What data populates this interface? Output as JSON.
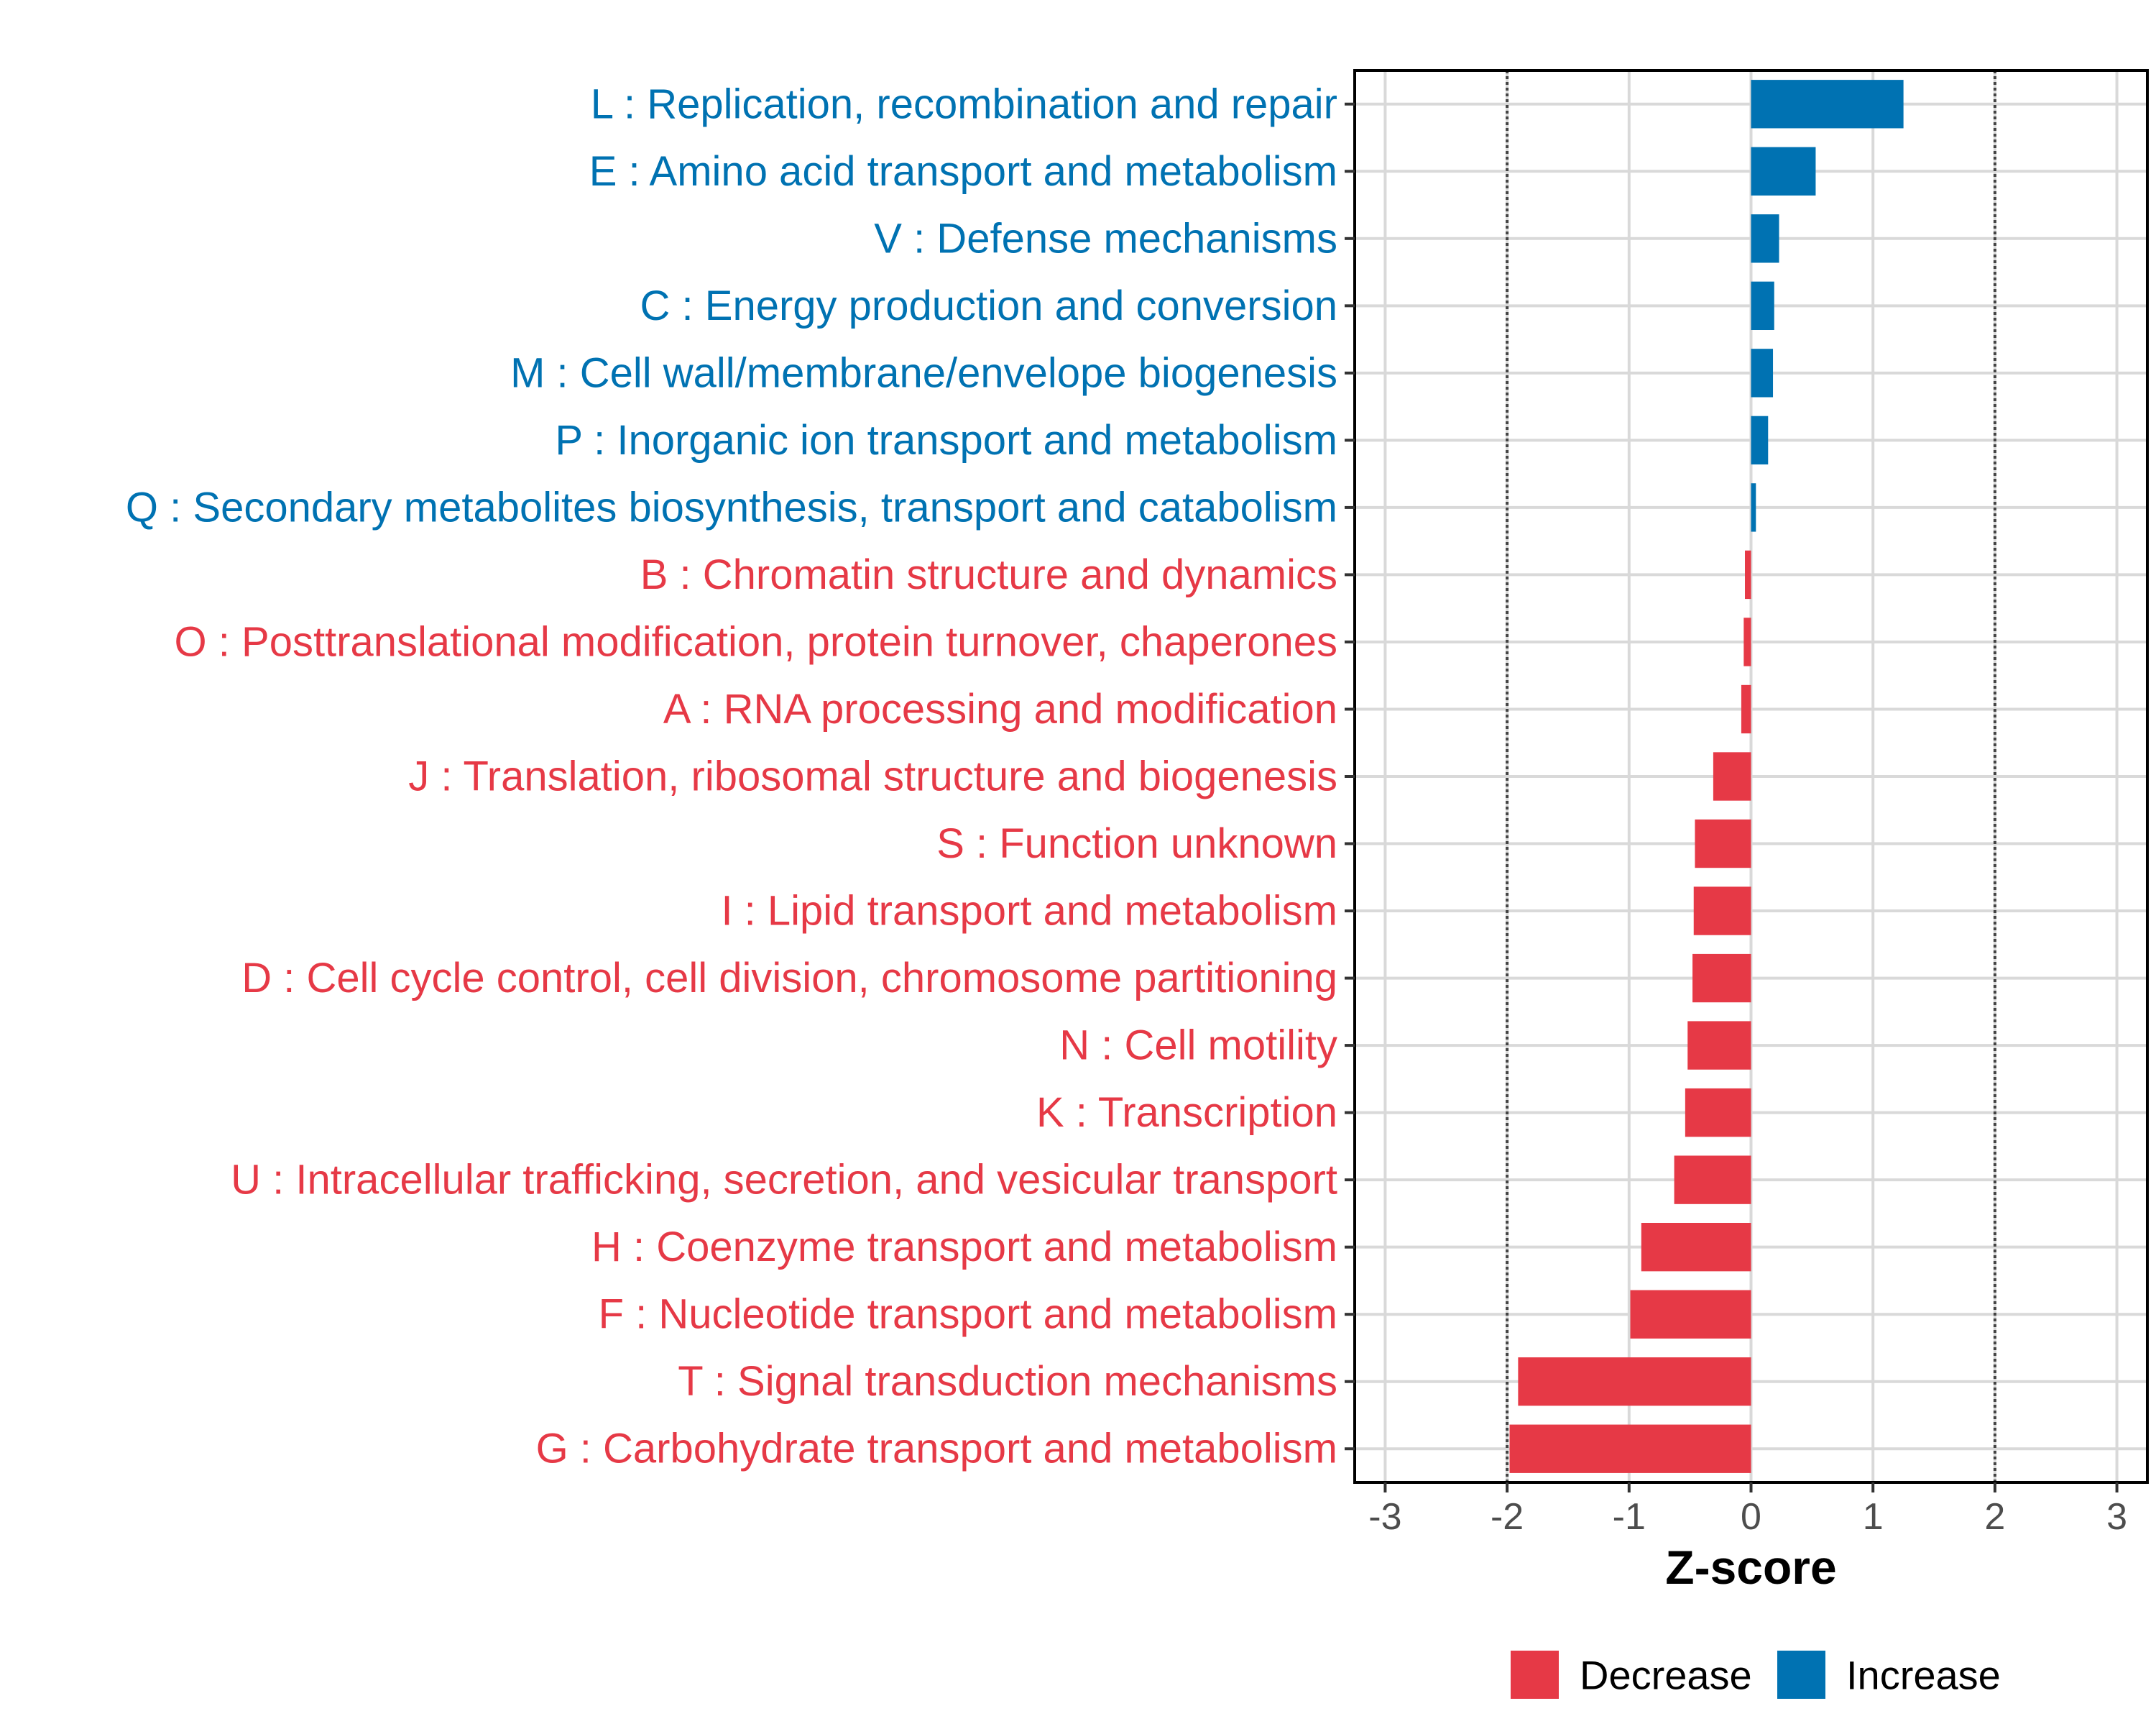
{
  "chart_data": {
    "type": "bar",
    "orientation": "horizontal",
    "title": "",
    "xlabel": "Z-score",
    "ylabel": "",
    "xlim": [
      -3.25,
      3.25
    ],
    "x_ticks": [
      -3,
      -2,
      -1,
      0,
      1,
      2,
      3
    ],
    "x_tick_labels": [
      "-3",
      "-2",
      "-1",
      "0",
      "1",
      "2",
      "3"
    ],
    "reference_lines": [
      -2,
      2
    ],
    "grid": true,
    "legend": {
      "position": "bottom",
      "entries": [
        {
          "label": "Decrease",
          "color": "#E63946"
        },
        {
          "label": "Increase",
          "color": "#0072B2"
        }
      ]
    },
    "categories": [
      "L : Replication, recombination and repair",
      "E : Amino acid transport and metabolism",
      "V : Defense mechanisms",
      "C : Energy production and conversion",
      "M : Cell wall/membrane/envelope biogenesis",
      "P : Inorganic ion transport and metabolism",
      "Q : Secondary metabolites biosynthesis, transport and catabolism",
      "B : Chromatin structure and dynamics",
      "O : Posttranslational modification, protein turnover, chaperones",
      "A : RNA processing and modification",
      "J : Translation, ribosomal structure and biogenesis",
      "S : Function unknown",
      "I : Lipid transport and metabolism",
      "D : Cell cycle control, cell division, chromosome partitioning",
      "N : Cell motility",
      "K : Transcription",
      "U : Intracellular trafficking, secretion, and vesicular transport",
      "H : Coenzyme transport and metabolism",
      "F : Nucleotide transport and metabolism",
      "T : Signal transduction mechanisms",
      "G : Carbohydrate transport and metabolism"
    ],
    "values": [
      1.25,
      0.53,
      0.23,
      0.19,
      0.18,
      0.14,
      0.04,
      -0.05,
      -0.06,
      -0.08,
      -0.31,
      -0.46,
      -0.47,
      -0.48,
      -0.52,
      -0.54,
      -0.63,
      -0.9,
      -0.99,
      -1.91,
      -1.98
    ],
    "groups": [
      "Increase",
      "Increase",
      "Increase",
      "Increase",
      "Increase",
      "Increase",
      "Increase",
      "Decrease",
      "Decrease",
      "Decrease",
      "Decrease",
      "Decrease",
      "Decrease",
      "Decrease",
      "Decrease",
      "Decrease",
      "Decrease",
      "Decrease",
      "Decrease",
      "Decrease",
      "Decrease"
    ]
  }
}
